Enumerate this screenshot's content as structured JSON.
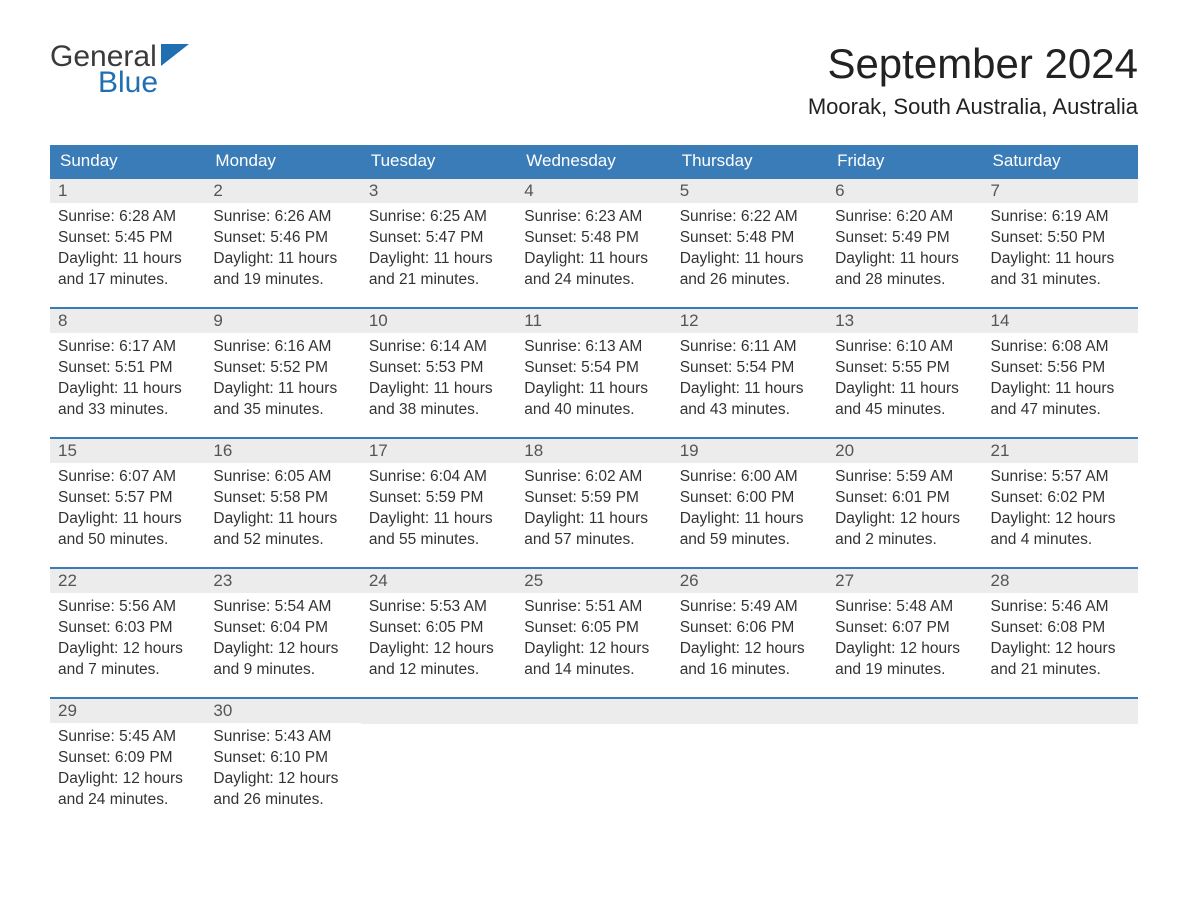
{
  "logo": {
    "text1": "General",
    "text2": "Blue",
    "icon_color": "#1f6fb2"
  },
  "header": {
    "month_title": "September 2024",
    "location": "Moorak, South Australia, Australia"
  },
  "styling": {
    "header_bg": "#3a7cb8",
    "header_text": "#ffffff",
    "daynum_bg": "#ececec",
    "daynum_border": "#3a7cb8",
    "body_text": "#333333",
    "page_bg": "#ffffff",
    "month_title_fontsize": 42,
    "location_fontsize": 22,
    "header_cell_fontsize": 17,
    "body_fontsize": 15.5
  },
  "weekdays": [
    "Sunday",
    "Monday",
    "Tuesday",
    "Wednesday",
    "Thursday",
    "Friday",
    "Saturday"
  ],
  "weeks": [
    [
      {
        "day": "1",
        "sunrise": "Sunrise: 6:28 AM",
        "sunset": "Sunset: 5:45 PM",
        "daylight": "Daylight: 11 hours and 17 minutes."
      },
      {
        "day": "2",
        "sunrise": "Sunrise: 6:26 AM",
        "sunset": "Sunset: 5:46 PM",
        "daylight": "Daylight: 11 hours and 19 minutes."
      },
      {
        "day": "3",
        "sunrise": "Sunrise: 6:25 AM",
        "sunset": "Sunset: 5:47 PM",
        "daylight": "Daylight: 11 hours and 21 minutes."
      },
      {
        "day": "4",
        "sunrise": "Sunrise: 6:23 AM",
        "sunset": "Sunset: 5:48 PM",
        "daylight": "Daylight: 11 hours and 24 minutes."
      },
      {
        "day": "5",
        "sunrise": "Sunrise: 6:22 AM",
        "sunset": "Sunset: 5:48 PM",
        "daylight": "Daylight: 11 hours and 26 minutes."
      },
      {
        "day": "6",
        "sunrise": "Sunrise: 6:20 AM",
        "sunset": "Sunset: 5:49 PM",
        "daylight": "Daylight: 11 hours and 28 minutes."
      },
      {
        "day": "7",
        "sunrise": "Sunrise: 6:19 AM",
        "sunset": "Sunset: 5:50 PM",
        "daylight": "Daylight: 11 hours and 31 minutes."
      }
    ],
    [
      {
        "day": "8",
        "sunrise": "Sunrise: 6:17 AM",
        "sunset": "Sunset: 5:51 PM",
        "daylight": "Daylight: 11 hours and 33 minutes."
      },
      {
        "day": "9",
        "sunrise": "Sunrise: 6:16 AM",
        "sunset": "Sunset: 5:52 PM",
        "daylight": "Daylight: 11 hours and 35 minutes."
      },
      {
        "day": "10",
        "sunrise": "Sunrise: 6:14 AM",
        "sunset": "Sunset: 5:53 PM",
        "daylight": "Daylight: 11 hours and 38 minutes."
      },
      {
        "day": "11",
        "sunrise": "Sunrise: 6:13 AM",
        "sunset": "Sunset: 5:54 PM",
        "daylight": "Daylight: 11 hours and 40 minutes."
      },
      {
        "day": "12",
        "sunrise": "Sunrise: 6:11 AM",
        "sunset": "Sunset: 5:54 PM",
        "daylight": "Daylight: 11 hours and 43 minutes."
      },
      {
        "day": "13",
        "sunrise": "Sunrise: 6:10 AM",
        "sunset": "Sunset: 5:55 PM",
        "daylight": "Daylight: 11 hours and 45 minutes."
      },
      {
        "day": "14",
        "sunrise": "Sunrise: 6:08 AM",
        "sunset": "Sunset: 5:56 PM",
        "daylight": "Daylight: 11 hours and 47 minutes."
      }
    ],
    [
      {
        "day": "15",
        "sunrise": "Sunrise: 6:07 AM",
        "sunset": "Sunset: 5:57 PM",
        "daylight": "Daylight: 11 hours and 50 minutes."
      },
      {
        "day": "16",
        "sunrise": "Sunrise: 6:05 AM",
        "sunset": "Sunset: 5:58 PM",
        "daylight": "Daylight: 11 hours and 52 minutes."
      },
      {
        "day": "17",
        "sunrise": "Sunrise: 6:04 AM",
        "sunset": "Sunset: 5:59 PM",
        "daylight": "Daylight: 11 hours and 55 minutes."
      },
      {
        "day": "18",
        "sunrise": "Sunrise: 6:02 AM",
        "sunset": "Sunset: 5:59 PM",
        "daylight": "Daylight: 11 hours and 57 minutes."
      },
      {
        "day": "19",
        "sunrise": "Sunrise: 6:00 AM",
        "sunset": "Sunset: 6:00 PM",
        "daylight": "Daylight: 11 hours and 59 minutes."
      },
      {
        "day": "20",
        "sunrise": "Sunrise: 5:59 AM",
        "sunset": "Sunset: 6:01 PM",
        "daylight": "Daylight: 12 hours and 2 minutes."
      },
      {
        "day": "21",
        "sunrise": "Sunrise: 5:57 AM",
        "sunset": "Sunset: 6:02 PM",
        "daylight": "Daylight: 12 hours and 4 minutes."
      }
    ],
    [
      {
        "day": "22",
        "sunrise": "Sunrise: 5:56 AM",
        "sunset": "Sunset: 6:03 PM",
        "daylight": "Daylight: 12 hours and 7 minutes."
      },
      {
        "day": "23",
        "sunrise": "Sunrise: 5:54 AM",
        "sunset": "Sunset: 6:04 PM",
        "daylight": "Daylight: 12 hours and 9 minutes."
      },
      {
        "day": "24",
        "sunrise": "Sunrise: 5:53 AM",
        "sunset": "Sunset: 6:05 PM",
        "daylight": "Daylight: 12 hours and 12 minutes."
      },
      {
        "day": "25",
        "sunrise": "Sunrise: 5:51 AM",
        "sunset": "Sunset: 6:05 PM",
        "daylight": "Daylight: 12 hours and 14 minutes."
      },
      {
        "day": "26",
        "sunrise": "Sunrise: 5:49 AM",
        "sunset": "Sunset: 6:06 PM",
        "daylight": "Daylight: 12 hours and 16 minutes."
      },
      {
        "day": "27",
        "sunrise": "Sunrise: 5:48 AM",
        "sunset": "Sunset: 6:07 PM",
        "daylight": "Daylight: 12 hours and 19 minutes."
      },
      {
        "day": "28",
        "sunrise": "Sunrise: 5:46 AM",
        "sunset": "Sunset: 6:08 PM",
        "daylight": "Daylight: 12 hours and 21 minutes."
      }
    ],
    [
      {
        "day": "29",
        "sunrise": "Sunrise: 5:45 AM",
        "sunset": "Sunset: 6:09 PM",
        "daylight": "Daylight: 12 hours and 24 minutes."
      },
      {
        "day": "30",
        "sunrise": "Sunrise: 5:43 AM",
        "sunset": "Sunset: 6:10 PM",
        "daylight": "Daylight: 12 hours and 26 minutes."
      },
      null,
      null,
      null,
      null,
      null
    ]
  ]
}
